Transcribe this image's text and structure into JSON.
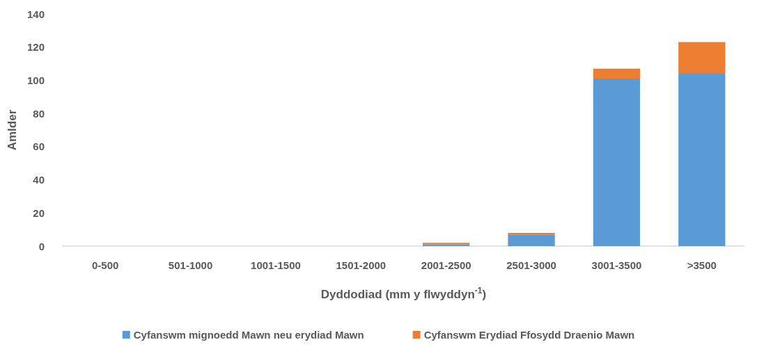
{
  "chart_data": {
    "type": "bar",
    "stacked": true,
    "xlabel": "Dyddodiad (mm y flwyddyn$^{-1}$)",
    "ylabel": "Amlder",
    "categories": [
      "0-500",
      "501-1000",
      "1001-1500",
      "1501-2000",
      "2001-2500",
      "2501-3000",
      "3001-3500",
      ">3500"
    ],
    "series": [
      {
        "name": "Cyfanswm mignoedd Mawn neu erydiad Mawn",
        "color": "#5b9bd5",
        "values": [
          0,
          0,
          0,
          0,
          1,
          7,
          101,
          104
        ]
      },
      {
        "name": "Cyfanswm Erydiad Ffosydd Draenio Mawn",
        "color": "#ed7d31",
        "values": [
          0,
          0,
          0,
          0,
          1,
          1,
          6,
          19
        ]
      }
    ],
    "ylim": [
      0,
      140
    ],
    "yticks": [
      0,
      20,
      40,
      60,
      80,
      100,
      120,
      140
    ],
    "grid": false,
    "legend": "bottom"
  }
}
